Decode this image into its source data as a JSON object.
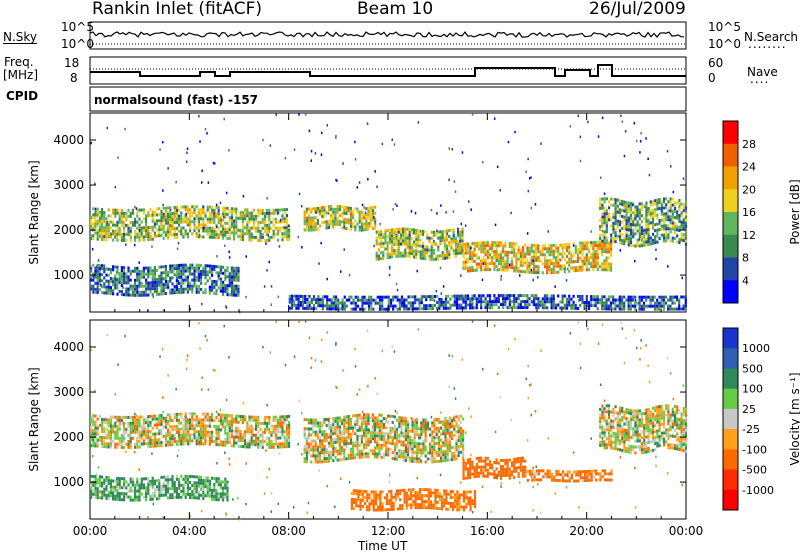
{
  "header": {
    "station": "Rankin Inlet (fitACF)",
    "beam": "Beam 10",
    "date": "26/Jul/2009"
  },
  "status_panels": {
    "nsky_label": "N.Sky",
    "nsky_ticks": [
      "10^5",
      "10^0"
    ],
    "nsearch_label": "N.Search",
    "freq_label_1": "Freq.",
    "freq_label_2": "[MHz]",
    "freq_ticks": [
      "18",
      "8"
    ],
    "nave_label": "Nave",
    "nave_ticks": [
      "60",
      "0"
    ],
    "cpid_label": "CPID",
    "cpid_value": "normalsound (fast) -157"
  },
  "colors": {
    "power_scale": [
      "#0000ff",
      "#2244aa",
      "#3b8a50",
      "#62b560",
      "#f0d020",
      "#f0a000",
      "#f06000",
      "#ff0000"
    ],
    "velocity_scale": [
      "#1a33cc",
      "#2e5fb0",
      "#2e8a5a",
      "#66cc44",
      "#c8c8c8",
      "#ff9f1a",
      "#ff6a00",
      "#ff2a00",
      "#ff0000"
    ]
  },
  "chart_data": [
    {
      "type": "heatmap",
      "title": "Power",
      "xlabel": "Time UT",
      "ylabel": "Slant Range [km]",
      "x_ticks": [
        "00:00",
        "04:00",
        "08:00",
        "12:00",
        "16:00",
        "20:00",
        "00:00"
      ],
      "y_ticks": [
        "1000",
        "2000",
        "3000",
        "4000"
      ],
      "ylim": [
        180,
        4600
      ],
      "colorbar": {
        "label": "Power [dB]",
        "ticks": [
          "28",
          "24",
          "20",
          "16",
          "12",
          "8",
          "4"
        ],
        "range": [
          0,
          30
        ]
      },
      "echo_bands": [
        {
          "t0": 0.0,
          "t1": 8.0,
          "r0": 1700,
          "r1": 2600,
          "value": 14
        },
        {
          "t0": 8.6,
          "t1": 11.5,
          "r0": 1900,
          "r1": 2600,
          "value": 16
        },
        {
          "t0": 11.5,
          "t1": 15.0,
          "r0": 1300,
          "r1": 2100,
          "value": 14
        },
        {
          "t0": 15.0,
          "t1": 21.0,
          "r0": 1000,
          "r1": 1800,
          "value": 18
        },
        {
          "t0": 20.5,
          "t1": 24.0,
          "r0": 1500,
          "r1": 2800,
          "value": 12
        },
        {
          "t0": 0.0,
          "t1": 6.0,
          "r0": 500,
          "r1": 1300,
          "value": 8
        },
        {
          "t0": 8.0,
          "t1": 24.0,
          "r0": 200,
          "r1": 600,
          "value": 6
        }
      ]
    },
    {
      "type": "heatmap",
      "title": "Velocity",
      "xlabel": "Time UT",
      "ylabel": "Slant Range [km]",
      "x_ticks": [
        "00:00",
        "04:00",
        "08:00",
        "12:00",
        "16:00",
        "20:00",
        "00:00"
      ],
      "y_ticks": [
        "1000",
        "2000",
        "3000",
        "4000"
      ],
      "ylim": [
        180,
        4600
      ],
      "colorbar": {
        "label": "Velocity [m s^-1]",
        "ticks": [
          "1000",
          "500",
          "100",
          "25",
          "-25",
          "-100",
          "-500",
          "-1000"
        ],
        "range": [
          -1000,
          1000
        ]
      },
      "echo_bands": [
        {
          "t0": 0.0,
          "t1": 8.0,
          "r0": 1700,
          "r1": 2600,
          "value": 0
        },
        {
          "t0": 8.6,
          "t1": 15.0,
          "r0": 1300,
          "r1": 2600,
          "value": 0
        },
        {
          "t0": 15.0,
          "t1": 17.5,
          "r0": 1000,
          "r1": 1600,
          "value": -300
        },
        {
          "t0": 17.5,
          "t1": 21.0,
          "r0": 1000,
          "r1": 1300,
          "value": -150
        },
        {
          "t0": 20.5,
          "t1": 24.0,
          "r0": 1500,
          "r1": 2800,
          "value": 0
        },
        {
          "t0": 0.0,
          "t1": 5.5,
          "r0": 500,
          "r1": 1200,
          "value": 150
        },
        {
          "t0": 10.5,
          "t1": 15.5,
          "r0": 300,
          "r1": 900,
          "value": -200
        }
      ]
    }
  ],
  "axis": {
    "x_label": "Time UT"
  }
}
